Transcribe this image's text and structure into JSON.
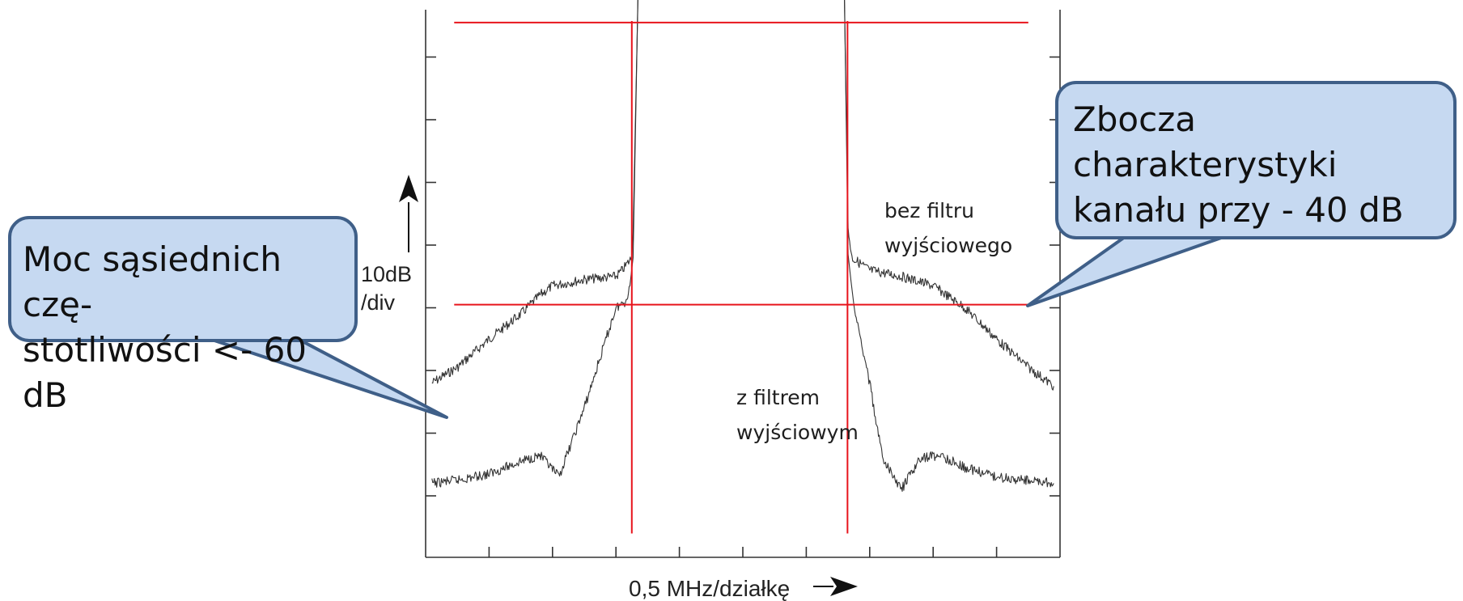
{
  "chart_data": {
    "type": "line",
    "title": "",
    "xlabel": "0,5 MHz/działkę",
    "ylabel": "10dB\n/div",
    "y_unit_label_line1": "10dB",
    "y_unit_label_line2": "/div",
    "x_divisions": 10,
    "y_divisions": 8,
    "x_range_divisions": [
      0,
      10
    ],
    "y_range_divisions": [
      0,
      8
    ],
    "grid": false,
    "axis_style": "box with tick marks, no numeric tick labels",
    "series": [
      {
        "name": "bez filtru wyjściowego",
        "color": "#333333",
        "x": [
          0.1,
          0.5,
          1.0,
          1.5,
          1.8,
          2.0,
          2.5,
          3.0,
          3.1,
          3.25,
          3.27,
          3.35,
          4.0,
          5.0,
          6.0,
          6.6,
          6.66,
          6.72,
          7.0,
          7.5,
          8.0,
          8.5,
          9.0,
          9.5,
          9.9
        ],
        "y": [
          1.8,
          2.05,
          2.5,
          2.9,
          3.2,
          3.35,
          3.45,
          3.5,
          3.6,
          3.8,
          4.2,
          8.1,
          8.15,
          8.2,
          8.15,
          8.1,
          4.25,
          3.8,
          3.6,
          3.5,
          3.35,
          3.0,
          2.5,
          2.05,
          1.75
        ]
      },
      {
        "name": "z filtrem wyjściowym",
        "color": "#333333",
        "x": [
          0.1,
          0.5,
          1.0,
          1.5,
          1.8,
          2.1,
          2.5,
          3.0,
          3.15,
          3.22,
          3.27,
          3.35,
          4.0,
          5.0,
          6.0,
          6.6,
          6.66,
          6.75,
          7.0,
          7.2,
          7.5,
          7.8,
          8.1,
          8.5,
          9.0,
          9.5,
          9.9
        ],
        "y": [
          0.2,
          0.25,
          0.35,
          0.55,
          0.65,
          0.3,
          1.4,
          3.0,
          3.1,
          3.35,
          3.8,
          8.1,
          8.15,
          8.2,
          8.15,
          8.1,
          3.85,
          3.0,
          1.8,
          0.6,
          0.1,
          0.6,
          0.65,
          0.45,
          0.3,
          0.25,
          0.2
        ]
      }
    ],
    "reference_lines": {
      "color": "#e8141c",
      "horizontal_y": [
        7.55,
        3.05
      ],
      "vertical_x": [
        3.25,
        6.65
      ]
    },
    "annotations": {
      "unfiltered_label_line1": "bez filtru",
      "unfiltered_label_line2": "wyjściowego",
      "filtered_label_line1": "z filtrem",
      "filtered_label_line2": "wyjściowym"
    }
  },
  "callouts": {
    "left_text": "Moc sąsiednich czę-\nstotliwości <- 60 dB",
    "right_text": "Zbocza charakterystyki\nkanału przy - 40 dB",
    "fill_color": "#c6d9f1",
    "border_color": "#3f5f88"
  }
}
